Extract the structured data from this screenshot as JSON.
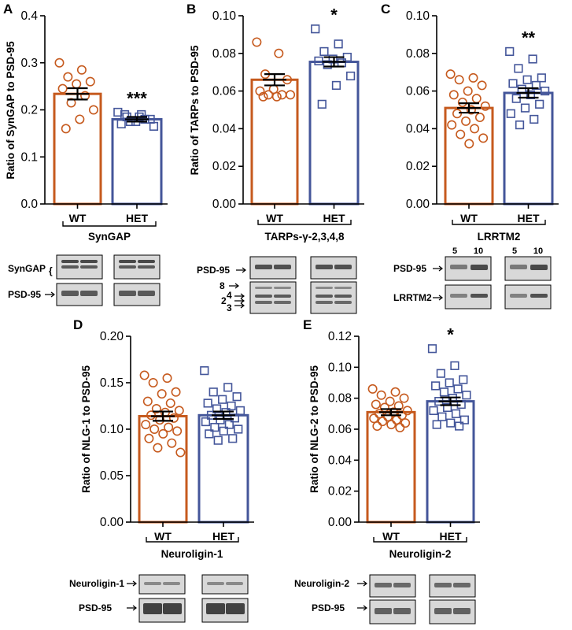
{
  "colors": {
    "wt": "#c65a1e",
    "het": "#44569a",
    "blot_bg": "#d8d8d8",
    "band": "#3a3a3a"
  },
  "chart_data": [
    {
      "panel": "A",
      "type": "bar",
      "categories": [
        "WT",
        "HET"
      ],
      "values": [
        0.234,
        0.18
      ],
      "sem": [
        0.012,
        0.005
      ],
      "points": [
        [
          0.3,
          0.285,
          0.27,
          0.26,
          0.255,
          0.245,
          0.23,
          0.215,
          0.2,
          0.18,
          0.16
        ],
        [
          0.195,
          0.19,
          0.185,
          0.18,
          0.175,
          0.17,
          0.18,
          0.175,
          0.165,
          0.185,
          0.19
        ]
      ],
      "ylabel": "Ratio of SynGAP to PSD-95",
      "ylim": [
        0,
        0.4
      ],
      "yticks": [
        "0.0",
        "0.1",
        "0.2",
        "0.3",
        "0.4"
      ],
      "group_label": "SynGAP",
      "significance": "***",
      "blot_labels": [
        "SynGAP",
        "PSD-95"
      ]
    },
    {
      "panel": "B",
      "type": "bar",
      "categories": [
        "WT",
        "HET"
      ],
      "values": [
        0.066,
        0.0755
      ],
      "sem": [
        0.003,
        0.0025
      ],
      "points": [
        [
          0.086,
          0.08,
          0.069,
          0.066,
          0.061,
          0.06,
          0.058,
          0.058,
          0.058,
          0.057,
          0.057
        ],
        [
          0.093,
          0.085,
          0.081,
          0.078,
          0.077,
          0.076,
          0.075,
          0.074,
          0.068,
          0.063,
          0.053
        ]
      ],
      "ylabel": "Ratio of TARPs to PSD-95",
      "ylim": [
        0,
        0.1
      ],
      "yticks": [
        "0.00",
        "0.02",
        "0.04",
        "0.06",
        "0.08",
        "0.10"
      ],
      "group_label": "TARPs-γ-2,3,4,8",
      "significance": "*",
      "blot_labels": [
        "PSD-95",
        "8",
        "4",
        "2",
        "3"
      ]
    },
    {
      "panel": "C",
      "type": "bar",
      "categories": [
        "WT",
        "HET"
      ],
      "values": [
        0.051,
        0.059
      ],
      "sem": [
        0.0025,
        0.0025
      ],
      "points": [
        [
          0.069,
          0.067,
          0.066,
          0.063,
          0.06,
          0.058,
          0.056,
          0.054,
          0.052,
          0.05,
          0.048,
          0.046,
          0.044,
          0.042,
          0.04,
          0.037,
          0.035,
          0.032
        ],
        [
          0.081,
          0.077,
          0.072,
          0.067,
          0.066,
          0.064,
          0.063,
          0.061,
          0.06,
          0.058,
          0.056,
          0.053,
          0.051,
          0.048,
          0.045,
          0.042
        ]
      ],
      "ylabel": "",
      "ylim": [
        0,
        0.1
      ],
      "yticks": [
        "0.00",
        "0.02",
        "0.04",
        "0.06",
        "0.08",
        "0.10"
      ],
      "group_label": "LRRTM2",
      "significance": "**",
      "blot_labels": [
        "PSD-95",
        "LRRTM2"
      ],
      "lane_numbers": [
        "5",
        "10",
        "5",
        "10"
      ]
    },
    {
      "panel": "D",
      "type": "bar",
      "categories": [
        "WT",
        "HET"
      ],
      "values": [
        0.114,
        0.115
      ],
      "sem": [
        0.005,
        0.004
      ],
      "points": [
        [
          0.158,
          0.155,
          0.15,
          0.14,
          0.138,
          0.13,
          0.128,
          0.122,
          0.12,
          0.118,
          0.115,
          0.112,
          0.11,
          0.105,
          0.102,
          0.1,
          0.098,
          0.095,
          0.09,
          0.085,
          0.08,
          0.075
        ],
        [
          0.163,
          0.145,
          0.14,
          0.135,
          0.132,
          0.128,
          0.125,
          0.122,
          0.12,
          0.118,
          0.115,
          0.112,
          0.11,
          0.108,
          0.105,
          0.102,
          0.1,
          0.098,
          0.095,
          0.09,
          0.088
        ]
      ],
      "ylabel": "Ratio of NLG-1 to PSD-95",
      "ylim": [
        0,
        0.2
      ],
      "yticks": [
        "0.00",
        "0.05",
        "0.10",
        "0.15",
        "0.20"
      ],
      "group_label": "Neuroligin-1",
      "significance": "",
      "blot_labels": [
        "Neuroligin-1",
        "PSD-95"
      ]
    },
    {
      "panel": "E",
      "type": "bar",
      "categories": [
        "WT",
        "HET"
      ],
      "values": [
        0.071,
        0.078
      ],
      "sem": [
        0.002,
        0.0025
      ],
      "points": [
        [
          0.086,
          0.084,
          0.082,
          0.08,
          0.078,
          0.076,
          0.075,
          0.074,
          0.072,
          0.071,
          0.07,
          0.069,
          0.068,
          0.067,
          0.066,
          0.065,
          0.064,
          0.063,
          0.062,
          0.061
        ],
        [
          0.112,
          0.101,
          0.096,
          0.092,
          0.09,
          0.088,
          0.086,
          0.084,
          0.082,
          0.08,
          0.078,
          0.076,
          0.074,
          0.072,
          0.07,
          0.068,
          0.066,
          0.064,
          0.063,
          0.062
        ]
      ],
      "ylabel": "Ratio of NLG-2 to PSD-95",
      "ylim": [
        0,
        0.12
      ],
      "yticks": [
        "0.00",
        "0.02",
        "0.04",
        "0.06",
        "0.08",
        "0.10",
        "0.12"
      ],
      "group_label": "Neuroligin-2",
      "significance": "*",
      "blot_labels": [
        "Neuroligin-2",
        "PSD-95"
      ]
    }
  ]
}
